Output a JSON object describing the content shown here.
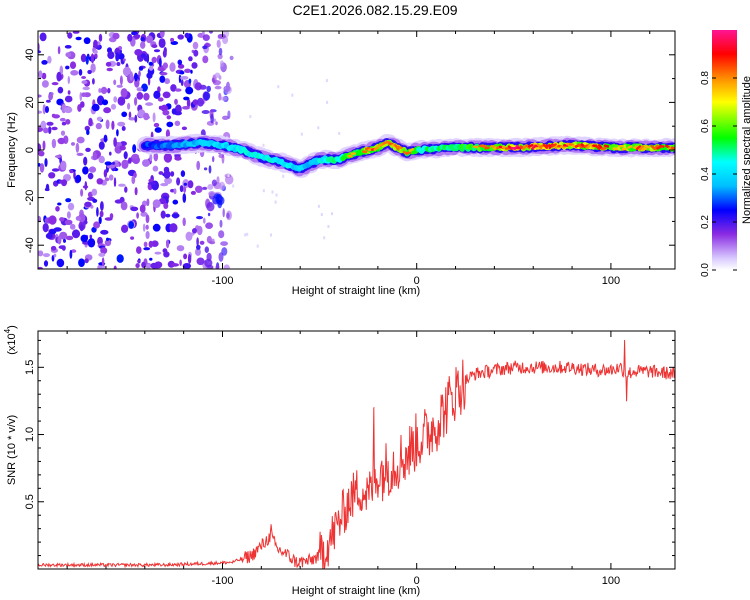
{
  "title": "C2E1.2026.082.15.29.E09",
  "chart_data": [
    {
      "type": "heatmap",
      "panel": "top",
      "xlabel": "Height of straight line (km)",
      "ylabel": "Frequency (Hz)",
      "xlim": [
        -195,
        133
      ],
      "ylim": [
        -50,
        50
      ],
      "xticks": [
        -100,
        0,
        100
      ],
      "xtick_labels": [
        "-100",
        "0",
        "100"
      ],
      "yticks": [
        -40,
        -20,
        0,
        20,
        40
      ],
      "ytick_labels": [
        "-40",
        "-20",
        "0",
        "20",
        "40"
      ],
      "ridge": {
        "x": [
          -195,
          -150,
          -125,
          -110,
          -100,
          -90,
          -80,
          -70,
          -60,
          -55,
          -50,
          -40,
          -30,
          -20,
          -15,
          -10,
          -5,
          0,
          20,
          50,
          80,
          100,
          133
        ],
        "freq": [
          3,
          2,
          2,
          3,
          2,
          0,
          -3,
          -5,
          -8,
          -6,
          -4,
          -4,
          -1,
          1,
          3,
          1,
          -1,
          0,
          1,
          1,
          2,
          1,
          1
        ],
        "amplitude": [
          0.3,
          0.35,
          0.45,
          0.55,
          0.55,
          0.6,
          0.65,
          0.6,
          0.55,
          0.5,
          0.6,
          0.7,
          0.8,
          0.85,
          0.9,
          0.85,
          0.8,
          0.7,
          0.7,
          0.95,
          0.9,
          0.85,
          0.85
        ]
      },
      "noise_region": [
        -195,
        -105
      ],
      "colorbar": {
        "label": "Normalized spectral amplitude",
        "range": [
          0,
          1
        ],
        "ticks": [
          0.0,
          0.2,
          0.4,
          0.6,
          0.8
        ],
        "tick_labels": [
          "0.0",
          "0.2",
          "0.4",
          "0.6",
          "0.8"
        ],
        "colormap": [
          "#ffffff",
          "#d8c8ff",
          "#8a2be2",
          "#0000ff",
          "#00bfff",
          "#00ffff",
          "#00ff00",
          "#ffff00",
          "#ff8c00",
          "#ff0000",
          "#ff1493"
        ]
      }
    },
    {
      "type": "line",
      "panel": "bottom",
      "xlabel": "Height of straight line (km)",
      "ylabel": "SNR (10 * v/v)",
      "scale_label": "(x10",
      "scale_exponent": "4",
      "scale_close": ")",
      "xlim": [
        -195,
        133
      ],
      "ylim": [
        0,
        1.77
      ],
      "xticks": [
        -100,
        0,
        100
      ],
      "xtick_labels": [
        "-100",
        "0",
        "100"
      ],
      "yticks": [
        0.5,
        1.0,
        1.5
      ],
      "ytick_labels": [
        "0.5",
        "1.0",
        "1.5"
      ],
      "series": [
        {
          "name": "SNR",
          "color": "#ee3333",
          "x": [
            -195,
            -160,
            -130,
            -110,
            -95,
            -85,
            -78,
            -75,
            -72,
            -68,
            -62,
            -55,
            -50,
            -45,
            -40,
            -35,
            -30,
            -25,
            -20,
            -15,
            -10,
            -5,
            0,
            5,
            10,
            15,
            20,
            25,
            30,
            40,
            50,
            60,
            70,
            80,
            90,
            100,
            105,
            108,
            112,
            120,
            133
          ],
          "values": [
            0.03,
            0.03,
            0.03,
            0.04,
            0.05,
            0.1,
            0.2,
            0.25,
            0.15,
            0.12,
            0.05,
            0.06,
            0.1,
            0.2,
            0.35,
            0.5,
            0.6,
            0.55,
            0.7,
            0.75,
            0.8,
            0.85,
            0.95,
            1.0,
            1.08,
            1.2,
            1.32,
            1.4,
            1.45,
            1.48,
            1.5,
            1.5,
            1.5,
            1.5,
            1.48,
            1.48,
            1.5,
            1.45,
            1.47,
            1.47,
            1.45
          ]
        }
      ],
      "spikes": [
        {
          "x": -75,
          "value": 0.33
        },
        {
          "x": -22,
          "value": 1.2
        },
        {
          "x": 107,
          "value": 1.7
        },
        {
          "x": 108,
          "value": 1.25
        }
      ]
    }
  ]
}
